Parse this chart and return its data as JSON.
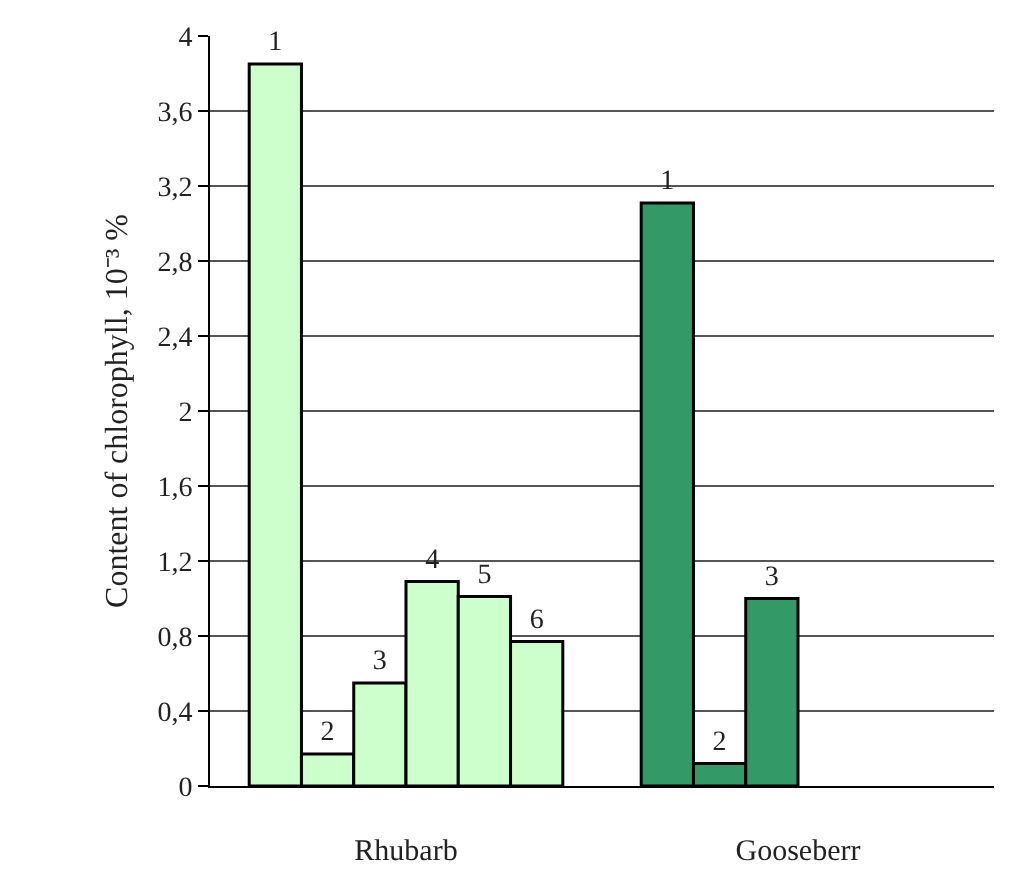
{
  "chart_data": {
    "type": "bar",
    "ylabel": "Content of chlorophyll, 10⁻³ %",
    "categories": [
      "Rhubarb",
      "Gooseberr"
    ],
    "series": [
      {
        "name": "1",
        "colors": [
          "#ccffcc",
          "#339966"
        ],
        "values": [
          3.85,
          3.11
        ]
      },
      {
        "name": "2",
        "colors": [
          "#ccffcc",
          "#339966"
        ],
        "values": [
          0.17,
          0.12
        ]
      },
      {
        "name": "3",
        "colors": [
          "#ccffcc",
          "#339966"
        ],
        "values": [
          0.55,
          1.0
        ]
      },
      {
        "name": "4",
        "colors": [
          "#ccffcc",
          "#339966"
        ],
        "values": [
          1.09,
          null
        ]
      },
      {
        "name": "5",
        "colors": [
          "#ccffcc",
          "#339966"
        ],
        "values": [
          1.01,
          null
        ]
      },
      {
        "name": "6",
        "colors": [
          "#ccffcc",
          "#339966"
        ],
        "values": [
          0.77,
          null
        ]
      }
    ],
    "ylim": [
      0,
      4
    ],
    "yticks": [
      0,
      {
        "value": 0.4,
        "label": "0,4"
      },
      {
        "value": 0.8,
        "label": "0,8"
      },
      {
        "value": 1.2,
        "label": "1,2"
      },
      {
        "value": 1.6,
        "label": "1,6"
      },
      2,
      {
        "value": 2.4,
        "label": "2,4"
      },
      {
        "value": 2.8,
        "label": "2,8"
      },
      {
        "value": 3.2,
        "label": "3,2"
      },
      {
        "value": 3.6,
        "label": "3,6"
      },
      4
    ],
    "grid": "y",
    "legend": false
  }
}
